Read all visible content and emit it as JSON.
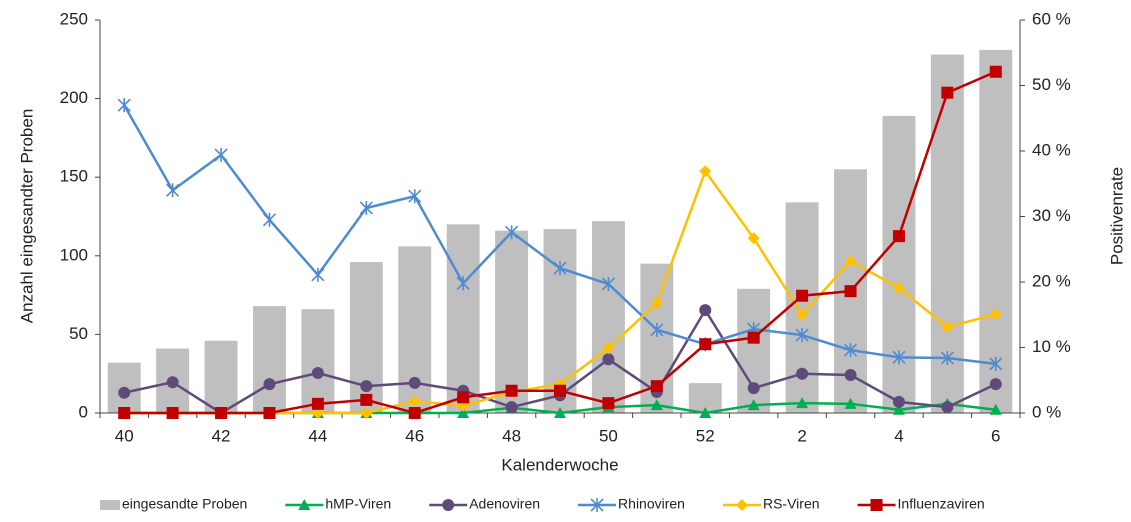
{
  "chart_data": {
    "type": "bar-line",
    "x_label": "Kalenderwoche",
    "y_label": "Anzahl eingesandter Proben",
    "y2_label": "Positivenrate",
    "categories": [
      "40",
      null,
      "42",
      null,
      "44",
      null,
      "46",
      null,
      "48",
      null,
      "50",
      null,
      "52",
      null,
      "2",
      null,
      "4",
      null,
      "6"
    ],
    "ylim": [
      0,
      250
    ],
    "yticks": [
      0,
      50,
      100,
      150,
      200,
      250
    ],
    "y2lim": [
      0,
      60
    ],
    "y2ticks": [
      {
        "value": 0,
        "label": "0 %"
      },
      {
        "value": 10,
        "label": "10 %"
      },
      {
        "value": 20,
        "label": "20 %"
      },
      {
        "value": 30,
        "label": "30 %"
      },
      {
        "value": 40,
        "label": "40 %"
      },
      {
        "value": 50,
        "label": "50 %"
      },
      {
        "value": 60,
        "label": "60 %"
      }
    ],
    "series": [
      {
        "name": "eingesandte Proben",
        "kind": "bar",
        "color": "#bfbfbf",
        "values": [
          32,
          41,
          46,
          68,
          66,
          96,
          106,
          120,
          116,
          117,
          122,
          95,
          19,
          79,
          134,
          155,
          189,
          228,
          231
        ]
      },
      {
        "name": "hMP-Viren",
        "kind": "line",
        "axis": "y2",
        "marker": "triangle",
        "color": "#00b050",
        "values": [
          0,
          0,
          0,
          0,
          0,
          0,
          0,
          0,
          0.8,
          0,
          0.9,
          1.2,
          0,
          1.2,
          1.5,
          1.4,
          0.5,
          1.4,
          0.5
        ]
      },
      {
        "name": "Adenoviren",
        "kind": "line",
        "axis": "y2",
        "marker": "circle",
        "color": "#604a7b",
        "values": [
          3.1,
          4.7,
          0,
          4.4,
          6.1,
          4.1,
          4.6,
          3.4,
          0.9,
          2.7,
          8.2,
          3.2,
          15.7,
          3.8,
          6.0,
          5.8,
          1.7,
          0.9,
          4.4
        ]
      },
      {
        "name": "Rhinoviren",
        "kind": "line",
        "axis": "y2",
        "marker": "star",
        "color": "#4f8bd0",
        "values": [
          47.0,
          34.0,
          39.4,
          29.5,
          21.1,
          31.3,
          33.1,
          19.8,
          27.6,
          22.1,
          19.7,
          12.7,
          10.5,
          12.8,
          11.9,
          9.6,
          8.5,
          8.4,
          7.5
        ]
      },
      {
        "name": "RS-Viren",
        "kind": "line",
        "axis": "y2",
        "marker": "diamond",
        "color": "#ffc000",
        "values": [
          0,
          0,
          0,
          0,
          0,
          0,
          1.8,
          1.1,
          3.2,
          4.4,
          9.9,
          16.8,
          36.9,
          26.7,
          15.0,
          23.2,
          19.1,
          13.1,
          15.1
        ]
      },
      {
        "name": "Influenzaviren",
        "kind": "line",
        "axis": "y2",
        "marker": "square",
        "color": "#c00000",
        "values": [
          0,
          0,
          0,
          0,
          1.4,
          2.0,
          0,
          2.4,
          3.4,
          3.4,
          1.5,
          4.1,
          10.5,
          11.5,
          17.9,
          18.6,
          27.0,
          48.9,
          52.1
        ]
      }
    ]
  }
}
